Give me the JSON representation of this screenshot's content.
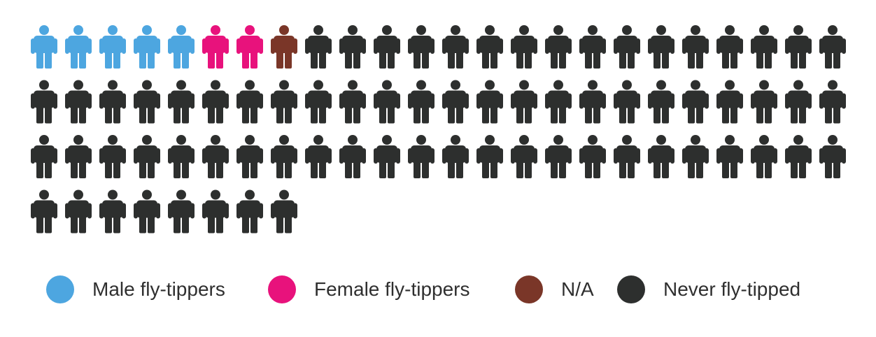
{
  "chart_data": {
    "type": "pictogram",
    "columns": 24,
    "total_icons": 80,
    "series": [
      {
        "name": "Male fly-tippers",
        "count": 5,
        "color": "#4da6e0"
      },
      {
        "name": "Female fly-tippers",
        "count": 2,
        "color": "#e8127c"
      },
      {
        "name": "N/A",
        "count": 1,
        "color": "#7a3628"
      },
      {
        "name": "Never fly-tipped",
        "count": 72,
        "color": "#2d2f2e"
      }
    ],
    "legend_position": "bottom",
    "icon": "person-icon"
  }
}
